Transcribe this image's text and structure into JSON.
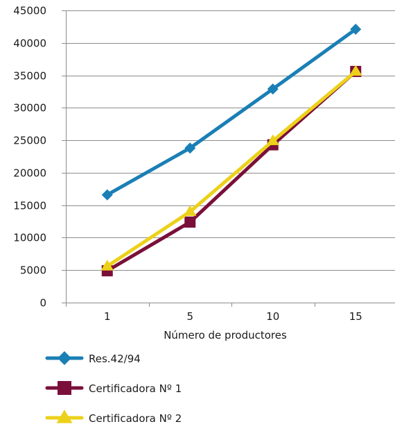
{
  "chart_data": {
    "type": "line",
    "title": "",
    "xlabel": "Número de productores",
    "ylabel": "",
    "categories": [
      "1",
      "5",
      "10",
      "15"
    ],
    "ylim": [
      0,
      45000
    ],
    "yticks": [
      0,
      5000,
      10000,
      15000,
      20000,
      25000,
      30000,
      35000,
      40000,
      45000
    ],
    "grid": true,
    "legend_position": "bottom-left",
    "series": [
      {
        "name": "Res.42/94",
        "values": [
          16600,
          23800,
          32900,
          42100
        ],
        "color": "#1a7fb5",
        "marker": "diamond"
      },
      {
        "name": "Certificadora Nº 1",
        "values": [
          4900,
          12400,
          24300,
          35600
        ],
        "color": "#7a0f3a",
        "marker": "square"
      },
      {
        "name": "Certificadora Nº 2",
        "values": [
          5600,
          14000,
          24900,
          35600
        ],
        "color": "#ecd11a",
        "marker": "triangle"
      }
    ]
  }
}
